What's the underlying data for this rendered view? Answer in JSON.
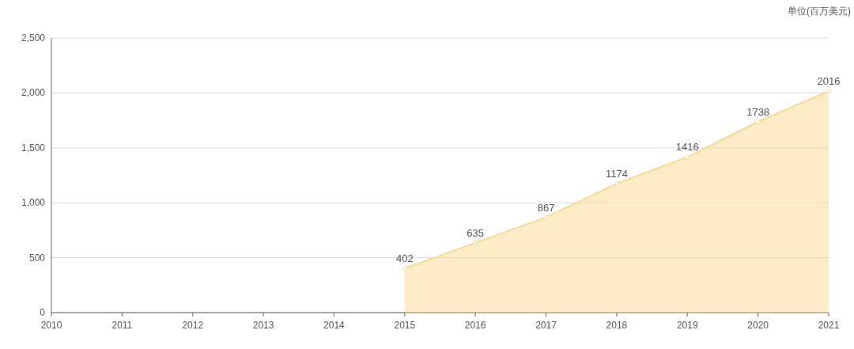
{
  "chart_data": {
    "type": "area",
    "ylabel": "单位(百万美元)",
    "categories": [
      "2010",
      "2011",
      "2012",
      "2013",
      "2014",
      "2015",
      "2016",
      "2017",
      "2018",
      "2019",
      "2020",
      "2021"
    ],
    "series": [
      {
        "color": "#fbd98f",
        "values": [
          null,
          null,
          null,
          null,
          null,
          402,
          635,
          867,
          1174,
          1416,
          1738,
          2016
        ]
      }
    ],
    "ylim": [
      0,
      2500
    ],
    "yticks": [
      0,
      500,
      {
        "value": 1000,
        "label": "1,000"
      },
      {
        "value": 1500,
        "label": "1,500"
      },
      {
        "value": 2000,
        "label": "2,000"
      },
      {
        "value": 2500,
        "label": "2,500"
      }
    ],
    "grid": "y",
    "data_labels": true,
    "marker": "circle",
    "line_style": "solid"
  }
}
